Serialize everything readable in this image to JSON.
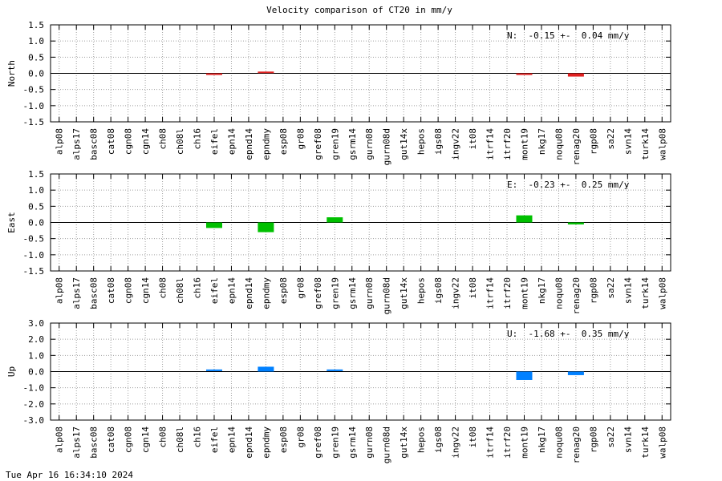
{
  "chart_data": {
    "type": "bar",
    "title": "Velocity comparison of CT20 in mm/y",
    "categories": [
      "alp08",
      "alps17",
      "basc08",
      "cat08",
      "cgn08",
      "cgn14",
      "ch08",
      "ch08l",
      "ch16",
      "eifel",
      "epn14",
      "epnd14",
      "epndmy",
      "esp08",
      "gr08",
      "gref08",
      "gren19",
      "gsrm14",
      "gurn08",
      "gurn08d",
      "gut14x",
      "hepos",
      "igs08",
      "ingv22",
      "it08",
      "itrf14",
      "itrf20",
      "mont19",
      "nkg17",
      "noqu08",
      "renag20",
      "rgp08",
      "sa22",
      "svn14",
      "turk14",
      "walp08"
    ],
    "grid": true,
    "panels": [
      {
        "ylabel": "North",
        "ylim": [
          -1.5,
          1.5
        ],
        "yticks": [
          -1.5,
          -1.0,
          -0.5,
          0.0,
          0.5,
          1.0,
          1.5
        ],
        "ytick_labels": [
          "-1.5",
          "-1.0",
          "-0.5",
          "0.0",
          "0.5",
          "1.0",
          "1.5"
        ],
        "color": "#e02020",
        "stat": "N:  -0.15 +-  0.04 mm/y",
        "bars": [
          {
            "category": "eifel",
            "value": -0.02
          },
          {
            "category": "epndmy",
            "value": 0.03
          },
          {
            "category": "mont19",
            "value": -0.04
          },
          {
            "category": "renag20",
            "value": -0.1
          }
        ]
      },
      {
        "ylabel": "East",
        "ylim": [
          -1.5,
          1.5
        ],
        "yticks": [
          -1.5,
          -1.0,
          -0.5,
          0.0,
          0.5,
          1.0,
          1.5
        ],
        "ytick_labels": [
          "-1.5",
          "-1.0",
          "-0.5",
          "0.0",
          "0.5",
          "1.0",
          "1.5"
        ],
        "color": "#00c000",
        "stat": "E:  -0.23 +-  0.25 mm/y",
        "bars": [
          {
            "category": "eifel",
            "value": -0.17
          },
          {
            "category": "epndmy",
            "value": -0.3
          },
          {
            "category": "gren19",
            "value": 0.16
          },
          {
            "category": "mont19",
            "value": 0.22
          },
          {
            "category": "renag20",
            "value": -0.06
          }
        ]
      },
      {
        "ylabel": "Up",
        "ylim": [
          -3.0,
          3.0
        ],
        "yticks": [
          -3.0,
          -2.0,
          -1.0,
          0.0,
          1.0,
          2.0,
          3.0
        ],
        "ytick_labels": [
          "-3.0",
          "-2.0",
          "-1.0",
          "0.0",
          "1.0",
          "2.0",
          "3.0"
        ],
        "color": "#0080ff",
        "stat": "U:  -1.68 +-  0.35 mm/y",
        "bars": [
          {
            "category": "eifel",
            "value": 0.08
          },
          {
            "category": "epndmy",
            "value": 0.3
          },
          {
            "category": "gren19",
            "value": 0.08
          },
          {
            "category": "mont19",
            "value": -0.52
          },
          {
            "category": "renag20",
            "value": -0.22
          }
        ]
      }
    ]
  },
  "footer": {
    "timestamp": "Tue Apr 16 16:34:10 2024"
  }
}
